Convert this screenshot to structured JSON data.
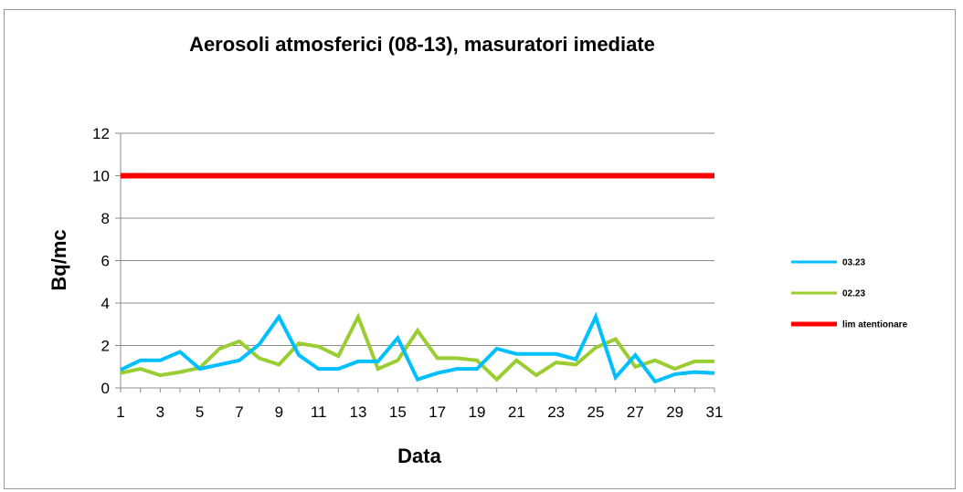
{
  "chart_data": {
    "type": "line",
    "title": "Aerosoli atmosferici (08-13), masuratori imediate",
    "xlabel": "Data",
    "ylabel": "Bq/mc",
    "ylim": [
      0,
      12
    ],
    "y_ticks": [
      "0",
      "2",
      "4",
      "6",
      "8",
      "10",
      "12"
    ],
    "x": [
      1,
      2,
      3,
      4,
      5,
      6,
      7,
      8,
      9,
      10,
      11,
      12,
      13,
      14,
      15,
      16,
      17,
      18,
      19,
      20,
      21,
      22,
      23,
      24,
      25,
      26,
      27,
      28,
      29,
      30,
      31
    ],
    "x_ticks": [
      "1",
      "3",
      "5",
      "7",
      "9",
      "11",
      "13",
      "15",
      "17",
      "19",
      "21",
      "23",
      "25",
      "27",
      "29",
      "31"
    ],
    "grid": true,
    "legend_position": "right",
    "series": [
      {
        "name": "03.23",
        "color": "#00bfff",
        "values": [
          0.85,
          1.3,
          1.3,
          1.7,
          0.9,
          1.1,
          1.3,
          2.05,
          3.35,
          1.55,
          0.9,
          0.9,
          1.25,
          1.25,
          2.35,
          0.4,
          0.7,
          0.9,
          0.9,
          1.85,
          1.6,
          1.6,
          1.6,
          1.35,
          3.35,
          0.5,
          1.55,
          0.3,
          0.65,
          0.75,
          0.7
        ]
      },
      {
        "name": "02.23",
        "color": "#9acd32",
        "values": [
          0.7,
          0.9,
          0.6,
          0.75,
          0.95,
          1.85,
          2.2,
          1.4,
          1.1,
          2.1,
          1.95,
          1.5,
          3.35,
          0.9,
          1.3,
          2.7,
          1.4,
          1.4,
          1.3,
          0.4,
          1.3,
          0.6,
          1.2,
          1.1,
          1.9,
          2.3,
          1.0,
          1.3,
          0.9,
          1.25,
          1.25
        ]
      },
      {
        "name": "lim atentionare",
        "color": "#ff0000",
        "values": [
          10,
          10,
          10,
          10,
          10,
          10,
          10,
          10,
          10,
          10,
          10,
          10,
          10,
          10,
          10,
          10,
          10,
          10,
          10,
          10,
          10,
          10,
          10,
          10,
          10,
          10,
          10,
          10,
          10,
          10,
          10
        ]
      }
    ]
  }
}
